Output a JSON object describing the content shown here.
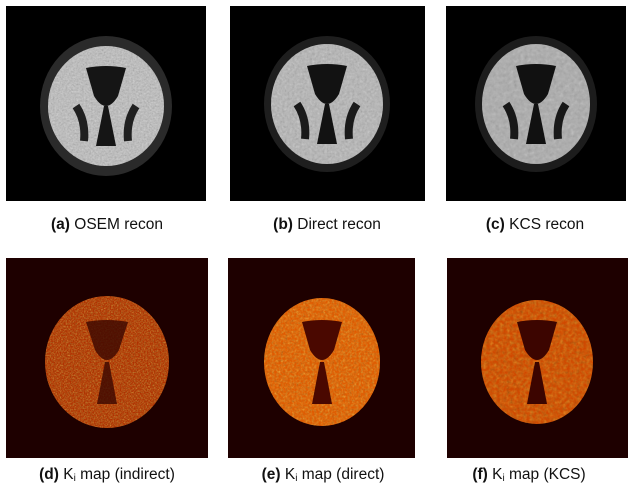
{
  "figure": {
    "panels": [
      {
        "id": "a",
        "label": "(a)",
        "text": "OSEM recon",
        "colormap": "gray",
        "noise": "high"
      },
      {
        "id": "b",
        "label": "(b)",
        "text": "Direct recon",
        "colormap": "gray",
        "noise": "medium"
      },
      {
        "id": "c",
        "label": "(c)",
        "text": "KCS recon",
        "colormap": "gray",
        "noise": "low"
      },
      {
        "id": "d",
        "label": "(d)",
        "pre": "K",
        "sub": "i",
        "text": " map (indirect)",
        "colormap": "hot",
        "noise": "high"
      },
      {
        "id": "e",
        "label": "(e)",
        "pre": "K",
        "sub": "i",
        "text": " map (direct)",
        "colormap": "hot",
        "noise": "medium"
      },
      {
        "id": "f",
        "label": "(f)",
        "pre": "K",
        "sub": "i",
        "text": " map (KCS)",
        "colormap": "hot",
        "noise": "low"
      }
    ]
  }
}
